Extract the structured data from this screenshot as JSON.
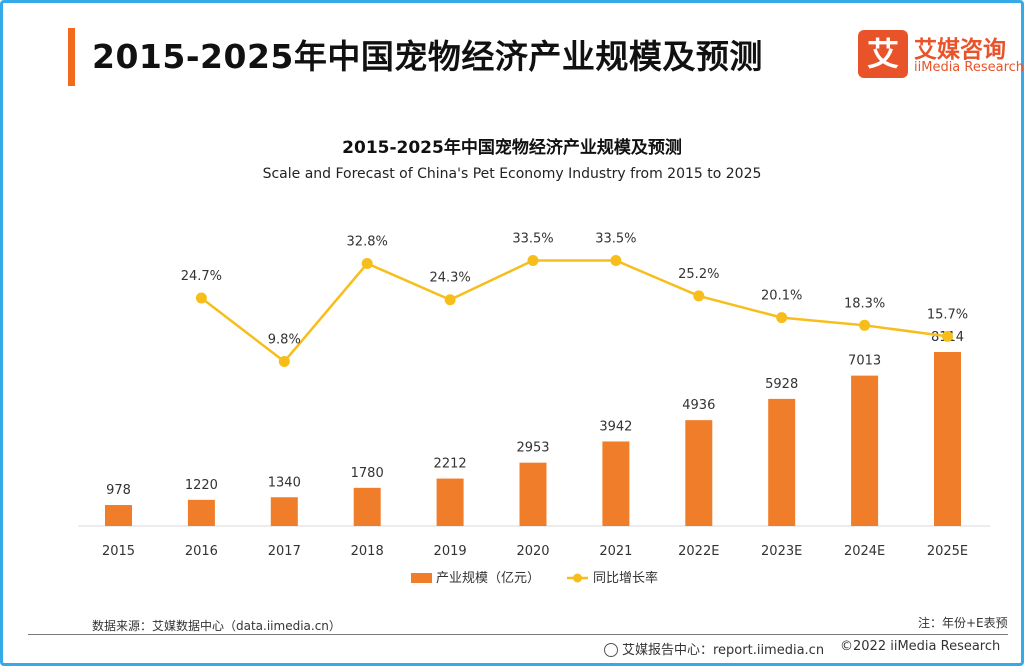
{
  "header": {
    "title": "2015-2025年中国宠物经济产业规模及预测",
    "logo_mark": "艾",
    "logo_cn": "艾媒咨询",
    "logo_en": "iiMedia Research"
  },
  "footer": {
    "source": "数据来源：艾媒数据中心（data.iimedia.cn）",
    "note": "注：年份+E表预",
    "report_label": "艾媒报告中心：report.iimedia.cn",
    "copyright": "©2022  iiMedia Research"
  },
  "colors": {
    "bar": "#f07d2a",
    "line": "#f7be1b",
    "accent": "#f26b1d",
    "border": "#36a9e8"
  },
  "chart_data": {
    "type": "bar",
    "title": "2015-2025年中国宠物经济产业规模及预测",
    "subtitle": "Scale and Forecast of China's Pet Economy Industry from 2015 to 2025",
    "categories": [
      "2015",
      "2016",
      "2017",
      "2018",
      "2019",
      "2020",
      "2021",
      "2022E",
      "2023E",
      "2024E",
      "2025E"
    ],
    "series": [
      {
        "name": "产业规模（亿元）",
        "type": "bar",
        "values": [
          978,
          1220,
          1340,
          1780,
          2212,
          2953,
          3942,
          4936,
          5928,
          7013,
          8114
        ]
      },
      {
        "name": "同比增长率",
        "type": "line",
        "values": [
          null,
          24.7,
          9.8,
          32.8,
          24.3,
          33.5,
          33.5,
          25.2,
          20.1,
          18.3,
          15.7
        ],
        "labels": [
          "",
          "24.7%",
          "9.8%",
          "32.8%",
          "24.3%",
          "33.5%",
          "33.5%",
          "25.2%",
          "20.1%",
          "18.3%",
          "15.7%"
        ]
      }
    ],
    "legend": "bottom-center",
    "grid": false
  }
}
